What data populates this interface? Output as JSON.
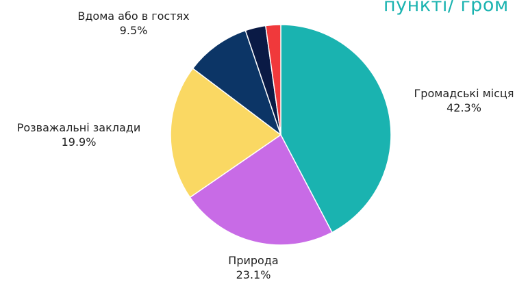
{
  "header": {
    "title_fragment": "пункті/ гром"
  },
  "chart_data": {
    "type": "pie",
    "title": "",
    "slices": [
      {
        "label": "Громадські місця",
        "value": 42.3,
        "value_label": "42.3%",
        "color": "#1ab3b0"
      },
      {
        "label": "Природа",
        "value": 23.1,
        "value_label": "23.1%",
        "color": "#c86be6"
      },
      {
        "label": "Розважальні заклади",
        "value": 19.9,
        "value_label": "19.9%",
        "color": "#fad863"
      },
      {
        "label": "Вдома або в гостях",
        "value": 9.5,
        "value_label": "9.5%",
        "color": "#0c3566"
      },
      {
        "label": "",
        "value": 3.0,
        "value_label": "",
        "color": "#0a1a45"
      },
      {
        "label": "",
        "value": 2.2,
        "value_label": "",
        "color": "#f0393b"
      }
    ],
    "start_angle_deg": 0,
    "direction": "clockwise",
    "legend": "none"
  }
}
